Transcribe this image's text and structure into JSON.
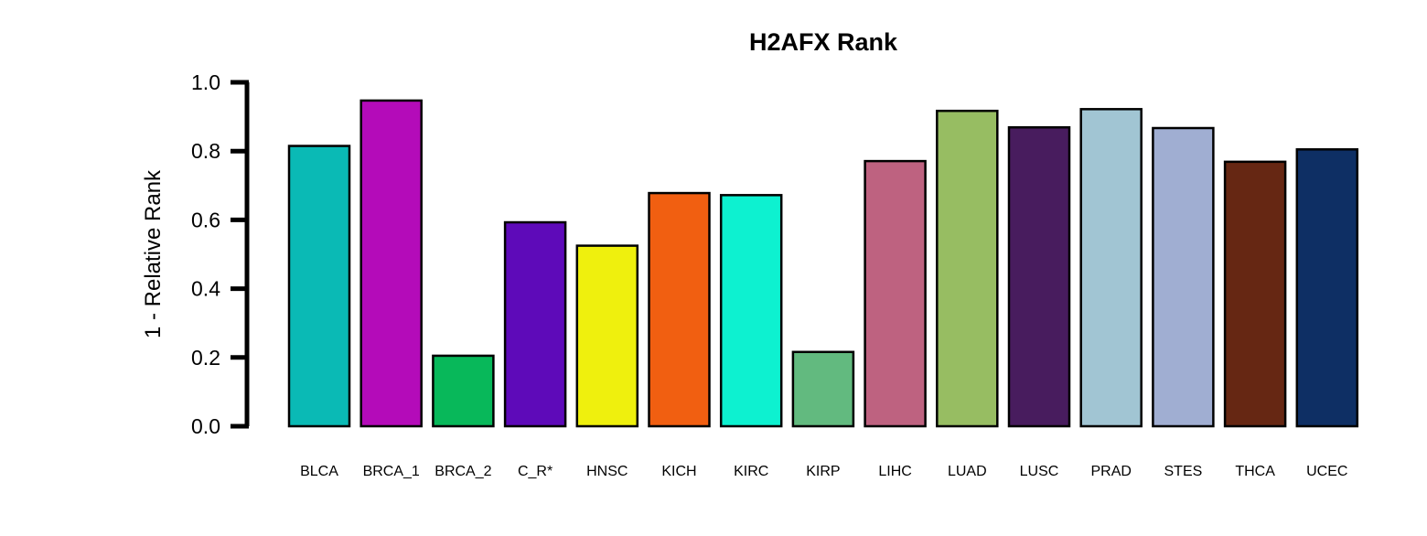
{
  "chart_data": {
    "type": "bar",
    "title": "H2AFX Rank",
    "xlabel": "",
    "ylabel": "1 - Relative Rank",
    "ylim": [
      0,
      1.0
    ],
    "yticks": [
      "0.0",
      "0.2",
      "0.4",
      "0.6",
      "0.8",
      "1.0"
    ],
    "grid": false,
    "categories": [
      "BLCA",
      "BRCA_1",
      "BRCA_2",
      "C_R*",
      "HNSC",
      "KICH",
      "KIRC",
      "KIRP",
      "LIHC",
      "LUAD",
      "LUSC",
      "PRAD",
      "STES",
      "THCA",
      "UCEC"
    ],
    "values": [
      0.815,
      0.947,
      0.205,
      0.593,
      0.525,
      0.678,
      0.672,
      0.216,
      0.771,
      0.917,
      0.869,
      0.922,
      0.867,
      0.769,
      0.805
    ],
    "colors": [
      "#0abab5",
      "#b40bb9",
      "#08b85a",
      "#5e0ab9",
      "#eff00d",
      "#f15f11",
      "#0df1d0",
      "#62ba7f",
      "#be6280",
      "#97bd62",
      "#481c5e",
      "#a1c5d3",
      "#a0aed2",
      "#662713",
      "#0e2f64"
    ]
  }
}
